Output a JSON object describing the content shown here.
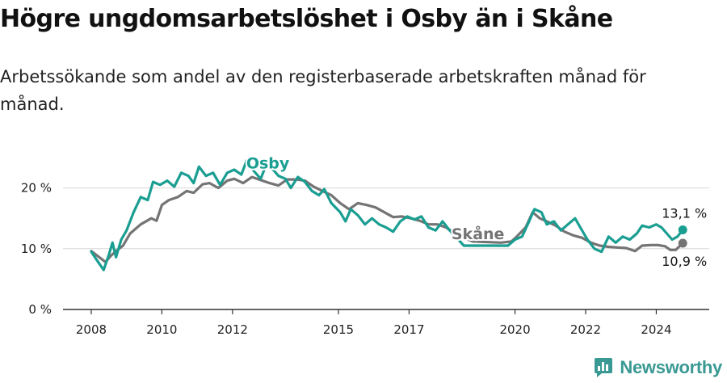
{
  "title": "Högre ungdomsarbetslöshet i Osby än i Skåne",
  "subtitle": "Arbetssökande som andel av den registerbaserade arbetskraften månad för månad.",
  "brand": {
    "name": "Newsworthy"
  },
  "colors": {
    "osby": "#1a9e92",
    "skane": "#747474",
    "grid": "#d7d7d7",
    "axis": "#333333"
  },
  "chart_data": {
    "type": "line",
    "title": "Högre ungdomsarbetslöshet i Osby än i Skåne",
    "xlabel": "",
    "ylabel": "",
    "xlim": [
      2007.2,
      2025.5
    ],
    "ylim": [
      0,
      25
    ],
    "grid": true,
    "yticks": [
      {
        "value": 0,
        "label": "0 %"
      },
      {
        "value": 10,
        "label": "10 %"
      },
      {
        "value": 20,
        "label": "20 %"
      }
    ],
    "xticks": [
      {
        "value": 2008,
        "label": "2008"
      },
      {
        "value": 2010,
        "label": "2010"
      },
      {
        "value": 2012,
        "label": "2012"
      },
      {
        "value": 2015,
        "label": "2015"
      },
      {
        "value": 2017,
        "label": "2017"
      },
      {
        "value": 2020,
        "label": "2020"
      },
      {
        "value": 2022,
        "label": "2022"
      },
      {
        "value": 2024,
        "label": "2024"
      }
    ],
    "series": [
      {
        "name": "Skåne",
        "color": "#747474",
        "label": "Skåne",
        "label_at": [
          2018.95,
          11.6
        ],
        "end_label": "10,9 %",
        "points": [
          [
            2008.0,
            9.6
          ],
          [
            2008.25,
            8.5
          ],
          [
            2008.4,
            7.8
          ],
          [
            2008.55,
            8.8
          ],
          [
            2008.7,
            9.6
          ],
          [
            2008.9,
            10.5
          ],
          [
            2009.1,
            12.5
          ],
          [
            2009.4,
            14.0
          ],
          [
            2009.7,
            15.0
          ],
          [
            2009.85,
            14.6
          ],
          [
            2010.0,
            17.2
          ],
          [
            2010.2,
            18.0
          ],
          [
            2010.45,
            18.5
          ],
          [
            2010.7,
            19.5
          ],
          [
            2010.9,
            19.2
          ],
          [
            2011.15,
            20.6
          ],
          [
            2011.35,
            20.8
          ],
          [
            2011.6,
            20.0
          ],
          [
            2011.85,
            21.2
          ],
          [
            2012.05,
            21.5
          ],
          [
            2012.3,
            20.8
          ],
          [
            2012.55,
            21.8
          ],
          [
            2012.8,
            21.3
          ],
          [
            2013.05,
            20.8
          ],
          [
            2013.3,
            20.4
          ],
          [
            2013.55,
            21.4
          ],
          [
            2013.8,
            21.4
          ],
          [
            2014.05,
            21.2
          ],
          [
            2014.3,
            20.2
          ],
          [
            2014.55,
            19.5
          ],
          [
            2014.8,
            18.8
          ],
          [
            2015.05,
            17.5
          ],
          [
            2015.3,
            16.5
          ],
          [
            2015.55,
            17.5
          ],
          [
            2015.8,
            17.2
          ],
          [
            2016.05,
            16.8
          ],
          [
            2016.3,
            16.0
          ],
          [
            2016.55,
            15.2
          ],
          [
            2016.8,
            15.3
          ],
          [
            2017.05,
            15.0
          ],
          [
            2017.3,
            14.6
          ],
          [
            2017.55,
            14.0
          ],
          [
            2017.8,
            14.0
          ],
          [
            2018.05,
            13.5
          ],
          [
            2018.3,
            12.5
          ],
          [
            2018.55,
            11.8
          ],
          [
            2018.8,
            11.2
          ],
          [
            2019.6,
            11.0
          ],
          [
            2019.9,
            11.2
          ],
          [
            2020.05,
            12.0
          ],
          [
            2020.3,
            13.5
          ],
          [
            2020.5,
            16.0
          ],
          [
            2020.7,
            15.0
          ],
          [
            2020.9,
            14.5
          ],
          [
            2021.15,
            13.8
          ],
          [
            2021.4,
            12.8
          ],
          [
            2021.65,
            12.2
          ],
          [
            2021.9,
            11.8
          ],
          [
            2022.15,
            11.0
          ],
          [
            2022.4,
            10.5
          ],
          [
            2022.65,
            10.3
          ],
          [
            2022.9,
            10.2
          ],
          [
            2023.15,
            10.1
          ],
          [
            2023.4,
            9.6
          ],
          [
            2023.6,
            10.5
          ],
          [
            2023.85,
            10.6
          ],
          [
            2024.05,
            10.6
          ],
          [
            2024.25,
            10.4
          ],
          [
            2024.4,
            9.8
          ],
          [
            2024.55,
            9.8
          ],
          [
            2024.75,
            10.9
          ]
        ]
      },
      {
        "name": "Osby",
        "color": "#1a9e92",
        "label": "Osby",
        "label_at": [
          2013.0,
          23.2
        ],
        "end_label": "13,1 %",
        "points": [
          [
            2008.0,
            9.5
          ],
          [
            2008.15,
            8.2
          ],
          [
            2008.35,
            6.5
          ],
          [
            2008.5,
            9.0
          ],
          [
            2008.6,
            11.0
          ],
          [
            2008.7,
            8.6
          ],
          [
            2008.85,
            11.5
          ],
          [
            2009.0,
            13.0
          ],
          [
            2009.2,
            16.0
          ],
          [
            2009.4,
            18.5
          ],
          [
            2009.6,
            18.0
          ],
          [
            2009.75,
            21.0
          ],
          [
            2009.95,
            20.5
          ],
          [
            2010.15,
            21.2
          ],
          [
            2010.35,
            20.2
          ],
          [
            2010.55,
            22.5
          ],
          [
            2010.75,
            22.0
          ],
          [
            2010.9,
            20.8
          ],
          [
            2011.05,
            23.5
          ],
          [
            2011.25,
            22.0
          ],
          [
            2011.45,
            22.5
          ],
          [
            2011.65,
            20.5
          ],
          [
            2011.85,
            22.5
          ],
          [
            2012.05,
            23.0
          ],
          [
            2012.25,
            22.2
          ],
          [
            2012.4,
            24.5
          ],
          [
            2012.6,
            22.8
          ],
          [
            2012.8,
            21.5
          ],
          [
            2012.95,
            23.8
          ],
          [
            2013.15,
            23.0
          ],
          [
            2013.3,
            22.0
          ],
          [
            2013.5,
            21.5
          ],
          [
            2013.65,
            20.0
          ],
          [
            2013.85,
            21.8
          ],
          [
            2014.05,
            21.0
          ],
          [
            2014.25,
            19.5
          ],
          [
            2014.45,
            18.8
          ],
          [
            2014.6,
            19.8
          ],
          [
            2014.8,
            17.5
          ],
          [
            2015.05,
            16.0
          ],
          [
            2015.2,
            14.5
          ],
          [
            2015.35,
            16.5
          ],
          [
            2015.55,
            15.5
          ],
          [
            2015.75,
            14.0
          ],
          [
            2015.95,
            15.0
          ],
          [
            2016.15,
            14.0
          ],
          [
            2016.35,
            13.5
          ],
          [
            2016.55,
            12.8
          ],
          [
            2016.75,
            14.5
          ],
          [
            2016.95,
            15.3
          ],
          [
            2017.15,
            14.8
          ],
          [
            2017.35,
            15.3
          ],
          [
            2017.55,
            13.5
          ],
          [
            2017.75,
            13.0
          ],
          [
            2017.95,
            14.5
          ],
          [
            2018.15,
            13.0
          ],
          [
            2018.35,
            11.8
          ],
          [
            2018.55,
            10.5
          ],
          [
            2019.8,
            10.5
          ],
          [
            2020.0,
            11.5
          ],
          [
            2020.2,
            12.0
          ],
          [
            2020.4,
            14.5
          ],
          [
            2020.55,
            16.5
          ],
          [
            2020.75,
            16.0
          ],
          [
            2020.9,
            14.0
          ],
          [
            2021.1,
            14.5
          ],
          [
            2021.3,
            13.0
          ],
          [
            2021.5,
            14.0
          ],
          [
            2021.7,
            15.0
          ],
          [
            2021.85,
            13.5
          ],
          [
            2022.05,
            11.5
          ],
          [
            2022.25,
            10.0
          ],
          [
            2022.45,
            9.5
          ],
          [
            2022.65,
            12.0
          ],
          [
            2022.85,
            11.0
          ],
          [
            2023.05,
            12.0
          ],
          [
            2023.25,
            11.5
          ],
          [
            2023.45,
            12.5
          ],
          [
            2023.6,
            13.8
          ],
          [
            2023.8,
            13.5
          ],
          [
            2024.0,
            14.0
          ],
          [
            2024.15,
            13.5
          ],
          [
            2024.3,
            12.5
          ],
          [
            2024.45,
            11.5
          ],
          [
            2024.6,
            12.0
          ],
          [
            2024.75,
            13.1
          ]
        ]
      }
    ]
  }
}
